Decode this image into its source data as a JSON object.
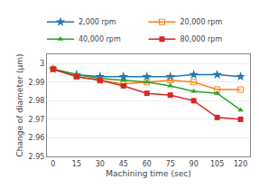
{
  "chart_data": {
    "type": "line",
    "xlabel": "Machining time (sec)",
    "ylabel": "Change of diameter (μm)",
    "x": [
      0,
      15,
      30,
      45,
      60,
      75,
      90,
      105,
      120
    ],
    "series": [
      {
        "name": "2,000 rpm",
        "marker": "star",
        "line_style": "solid",
        "values": [
          2.997,
          2.994,
          2.993,
          2.993,
          2.993,
          2.993,
          2.994,
          2.994,
          2.993
        ]
      },
      {
        "name": "20,000 rpm",
        "marker": "square-open",
        "line_style": "solid",
        "values": [
          2.997,
          2.993,
          2.991,
          2.989,
          2.99,
          2.991,
          2.99,
          2.986,
          2.986
        ]
      },
      {
        "name": "40,000 rpm",
        "marker": "triangle-up",
        "line_style": "solid",
        "values": [
          2.997,
          2.994,
          2.992,
          2.991,
          2.99,
          2.988,
          2.985,
          2.984,
          2.975
        ]
      },
      {
        "name": "80,000 rpm",
        "marker": "square",
        "line_style": "solid",
        "values": [
          2.997,
          2.993,
          2.991,
          2.988,
          2.984,
          2.983,
          2.98,
          2.971,
          2.97
        ]
      }
    ],
    "xlim": [
      -4,
      126
    ],
    "xticks": [
      0,
      15,
      30,
      45,
      60,
      75,
      90,
      105,
      120
    ],
    "ylim": [
      2.95,
      3.005
    ],
    "yticks": [
      2.95,
      2.96,
      2.97,
      2.98,
      2.99,
      3
    ],
    "grid": "y",
    "legend": "top"
  }
}
